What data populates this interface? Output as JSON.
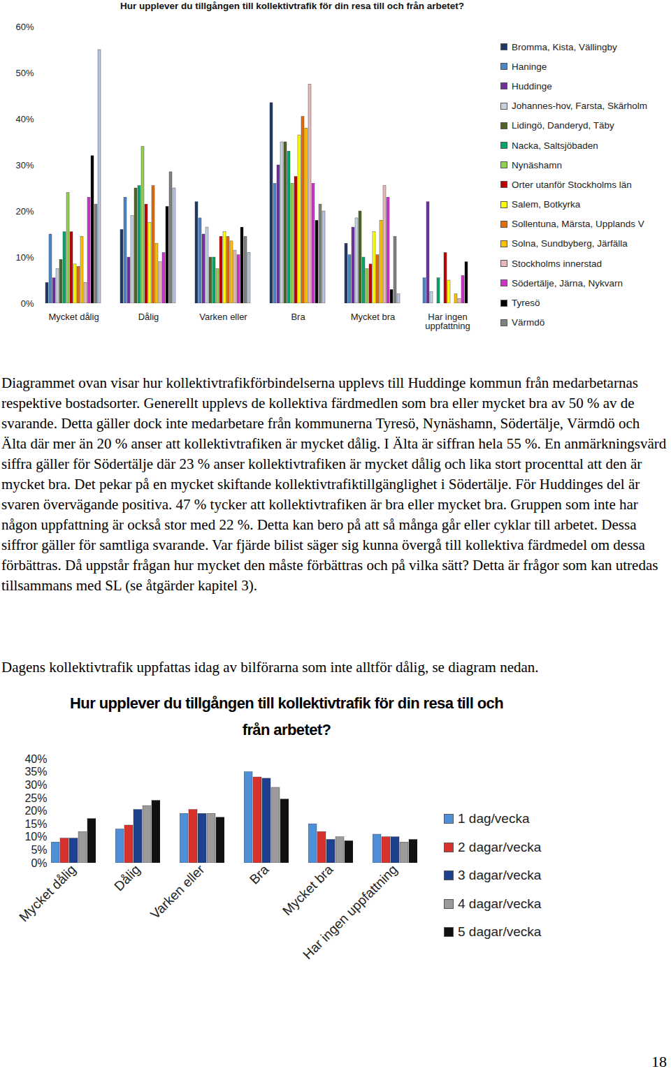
{
  "chart_data": [
    {
      "type": "bar",
      "title": "Hur upplever du tillgången till kollektivtrafik för din resa till och från arbetet?",
      "categories": [
        "Mycket dålig",
        "Dålig",
        "Varken eller",
        "Bra",
        "Mycket bra",
        "Har ingen uppfattning"
      ],
      "series": [
        {
          "name": "Bromma, Kista, Vällingby",
          "color": "#1f3864",
          "values": [
            4.5,
            16,
            22,
            43.5,
            13,
            0
          ]
        },
        {
          "name": "Haninge",
          "color": "#4a86c8",
          "values": [
            15,
            23,
            18.5,
            26,
            10.5,
            5.5
          ]
        },
        {
          "name": "Huddinge",
          "color": "#7030a0",
          "values": [
            5.5,
            10,
            15,
            30,
            16.5,
            22
          ]
        },
        {
          "name": "Johannes-hov, Farsta, Skärholm",
          "color": "#c5d0e0",
          "values": [
            7.5,
            19,
            16.5,
            35,
            18.5,
            2.5
          ]
        },
        {
          "name": "Lidingö, Danderyd, Täby",
          "color": "#4f6228",
          "values": [
            9.5,
            25,
            10,
            35,
            20,
            0
          ]
        },
        {
          "name": "Nacka, Saltsjöbaden",
          "color": "#00a86b",
          "values": [
            15.5,
            25.5,
            10,
            33,
            10,
            5.5
          ]
        },
        {
          "name": "Nynäshamn",
          "color": "#92d050",
          "values": [
            24,
            34,
            7.5,
            26,
            7.5,
            0
          ]
        },
        {
          "name": "Orter utanför Stockholms län",
          "color": "#c00000",
          "values": [
            15.5,
            21.5,
            14.5,
            27.5,
            8.5,
            11
          ]
        },
        {
          "name": "Salem, Botkyrka",
          "color": "#ffff00",
          "values": [
            8.5,
            17.5,
            15.5,
            36.5,
            15.5,
            5
          ]
        },
        {
          "name": "Sollentuna, Märsta, Upplands V",
          "color": "#e36c09",
          "values": [
            8,
            25.5,
            14.5,
            40.5,
            10.5,
            0
          ]
        },
        {
          "name": "Solna, Sundbyberg, Järfälla",
          "color": "#ffc000",
          "values": [
            14.5,
            13,
            13.5,
            38,
            18,
            2
          ]
        },
        {
          "name": "Stockholms innerstad",
          "color": "#e6b8b7",
          "values": [
            4.5,
            9,
            11.5,
            47.5,
            25.5,
            1
          ]
        },
        {
          "name": "Södertälje, Järna, Nykvarn",
          "color": "#cc33cc",
          "values": [
            23,
            11,
            10.5,
            26,
            23,
            6
          ]
        },
        {
          "name": "Tyresö",
          "color": "#000000",
          "values": [
            32,
            21,
            16.5,
            18,
            3,
            9
          ]
        },
        {
          "name": "Värmdö",
          "color": "#808080",
          "values": [
            21.5,
            28.5,
            14.5,
            21.5,
            14.5,
            0
          ]
        },
        {
          "name": null,
          "color": "#b8c4dc",
          "values": [
            55,
            25,
            11,
            20,
            2,
            0
          ]
        }
      ],
      "ylim": [
        0,
        60
      ],
      "yticks": [
        {
          "value": 0,
          "label": "0%"
        },
        {
          "value": 10,
          "label": "10%"
        },
        {
          "value": 20,
          "label": "20%"
        },
        {
          "value": 30,
          "label": "30%"
        },
        {
          "value": 40,
          "label": "40%"
        },
        {
          "value": 50,
          "label": "50%"
        },
        {
          "value": 60,
          "label": "60%"
        }
      ],
      "grid": false,
      "legend": "right"
    },
    {
      "type": "bar",
      "title": "Hur upplever du tillgången till kollektivtrafik för din resa till och från arbetet?",
      "categories": [
        "Mycket dålig",
        "Dålig",
        "Varken eller",
        "Bra",
        "Mycket bra",
        "Har ingen uppfattning"
      ],
      "series": [
        {
          "name": "1 dag/vecka",
          "color": "#4f8fd6",
          "values": [
            8,
            13,
            19,
            35,
            15,
            11
          ]
        },
        {
          "name": "2 dagar/vecka",
          "color": "#d9312b",
          "values": [
            9.5,
            14.5,
            20.5,
            33,
            12,
            10
          ]
        },
        {
          "name": "3 dagar/vecka",
          "color": "#1f3f8f",
          "values": [
            9.5,
            20.5,
            19,
            32.5,
            9,
            10
          ]
        },
        {
          "name": "4 dagar/vecka",
          "color": "#9a9a9a",
          "values": [
            12,
            22,
            19,
            29,
            10,
            8
          ]
        },
        {
          "name": "5 dagar/vecka",
          "color": "#111111",
          "values": [
            17,
            24,
            17.5,
            24.5,
            8.5,
            9
          ]
        }
      ],
      "ylim": [
        0,
        40
      ],
      "yticks": [
        {
          "value": 0,
          "label": "0%"
        },
        {
          "value": 5,
          "label": "5%"
        },
        {
          "value": 10,
          "label": "10%"
        },
        {
          "value": 15,
          "label": "15%"
        },
        {
          "value": 20,
          "label": "20%"
        },
        {
          "value": 25,
          "label": "25%"
        },
        {
          "value": 30,
          "label": "30%"
        },
        {
          "value": 35,
          "label": "35%"
        },
        {
          "value": 40,
          "label": "40%"
        }
      ],
      "grid": false,
      "legend": "right"
    }
  ],
  "document": {
    "paragraphs": [
      "Diagrammet ovan visar hur kollektivtrafikförbindelserna upplevs till Huddinge kommun från medarbetarnas respektive bostadsorter. Generellt upplevs de kollektiva färdmedlen som bra eller mycket bra av 50 % av de svarande. Detta gäller dock inte medarbetare från kommunerna Tyresö, Nynäshamn, Södertälje, Värmdö och Älta där mer än 20 % anser att kollektivtrafiken är mycket dålig. I Älta är siffran hela 55 %. En anmärkningsvärd siffra gäller för Södertälje där 23 % anser kollektivtrafiken är mycket dålig och lika stort procenttal att den är mycket bra. Det pekar på en mycket skiftande kollektivtrafiktillgänglighet i Södertälje. För Huddinges del är svaren övervägande positiva. 47 % tycker att kollektivtrafiken är bra eller mycket bra. Gruppen som inte har någon uppfattning är också stor med 22 %. Detta kan bero på att så många går eller cyklar till arbetet. Dessa siffror gäller för samtliga svarande. Var fjärde bilist säger sig kunna övergå till kollektiva färdmedel om dessa förbättras. Då uppstår frågan hur mycket den måste förbättras och på vilka sätt? Detta är frågor som kan utredas tillsammans med SL (se åtgärder kapitel 3).",
      "Dagens kollektivtrafik uppfattas idag av bilförarna som inte alltför dålig, se diagram nedan."
    ],
    "page_number": "18"
  }
}
